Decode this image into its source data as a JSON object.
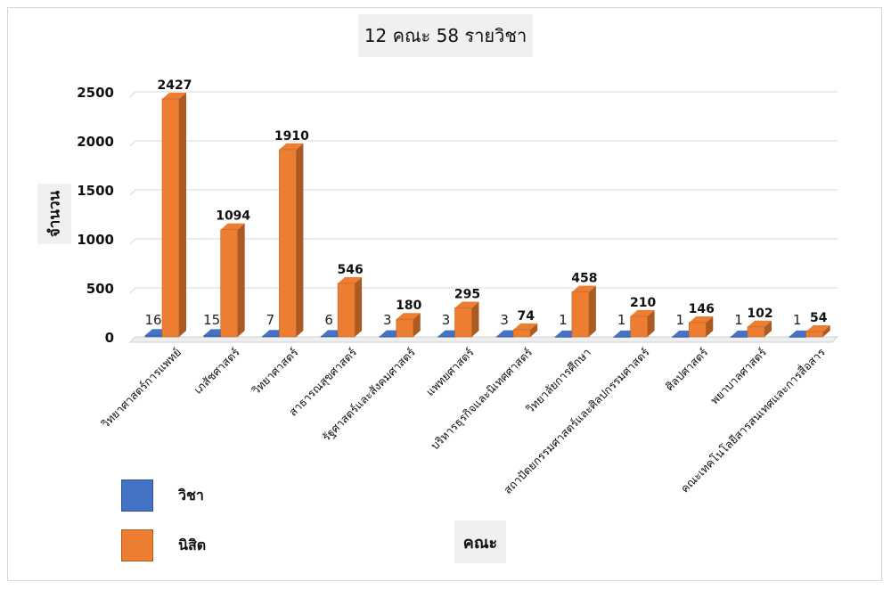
{
  "chart_data": {
    "type": "bar",
    "title": "12 คณะ 58 รายวิชา",
    "xlabel": "คณะ",
    "ylabel": "จำนวน",
    "ylim": [
      0,
      2500
    ],
    "yticks": [
      0,
      500,
      1000,
      1500,
      2000,
      2500
    ],
    "grid": true,
    "legend_position": "bottom-left",
    "categories": [
      "วิทยาศาสตร์การแพทย์",
      "เภสัชศาสตร์",
      "วิทยาศาสตร์",
      "สาธารณสุขศาสตร์",
      "รัฐศาสตร์และสังคมศาสตร์",
      "แพทยศาสตร์",
      "บริหารธุรกิจและนิเทศศาสตร์",
      "วิทยาลัยการศึกษา",
      "สถาปัตยกรรมศาสตร์และศิลปกรรมศาสตร์",
      "ศิลปศาสตร์",
      "พยาบาลศาสตร์",
      "คณะเทคโนโลยีสารสนเทศและการสื่อสาร"
    ],
    "series": [
      {
        "name": "วิชา",
        "color": "#4472c4",
        "values": [
          16,
          15,
          7,
          6,
          3,
          3,
          3,
          1,
          1,
          1,
          1,
          1
        ]
      },
      {
        "name": "นิสิต",
        "color": "#ed7d31",
        "values": [
          2427,
          1094,
          1910,
          546,
          180,
          295,
          74,
          458,
          210,
          146,
          102,
          54
        ]
      }
    ]
  }
}
